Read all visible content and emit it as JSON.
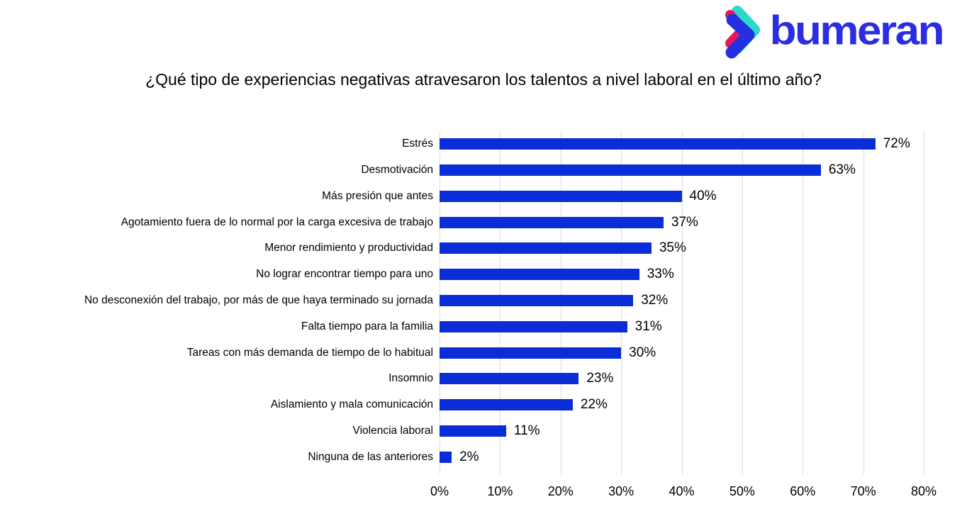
{
  "logo": {
    "text": "bumeran",
    "text_color": "#2b2de0",
    "mark_colors": {
      "blue": "#2430e2",
      "teal": "#2bd9c9",
      "pink": "#e8175d"
    }
  },
  "chart_data": {
    "type": "bar",
    "orientation": "horizontal",
    "title": "¿Qué tipo de experiencias negativas atravesaron los talentos a nivel laboral en el último año?",
    "categories": [
      "Estrés",
      "Desmotivación",
      "Más presión que antes",
      "Agotamiento fuera de lo normal por la carga excesiva de trabajo",
      "Menor rendimiento y productividad",
      "No lograr encontrar tiempo para uno",
      "No desconexión del trabajo, por más de que haya terminado su jornada",
      "Falta tiempo para la familia",
      "Tareas con más demanda de tiempo de lo habitual",
      "Insomnio",
      "Aislamiento y mala comunicación",
      "Violencia laboral",
      "Ninguna de las anteriores"
    ],
    "values": [
      72,
      63,
      40,
      37,
      35,
      33,
      32,
      31,
      30,
      23,
      22,
      11,
      2
    ],
    "value_labels": [
      "72%",
      "63%",
      "40%",
      "37%",
      "35%",
      "33%",
      "32%",
      "31%",
      "30%",
      "23%",
      "22%",
      "11%",
      "2%"
    ],
    "xlim": [
      0,
      80
    ],
    "x_tick_labels": [
      "0%",
      "10%",
      "20%",
      "30%",
      "40%",
      "50%",
      "60%",
      "70%",
      "80%"
    ],
    "bar_color": "#0b2dd8",
    "gridline_color": "#dcdcdc",
    "grid": true,
    "legend_position": "none"
  }
}
